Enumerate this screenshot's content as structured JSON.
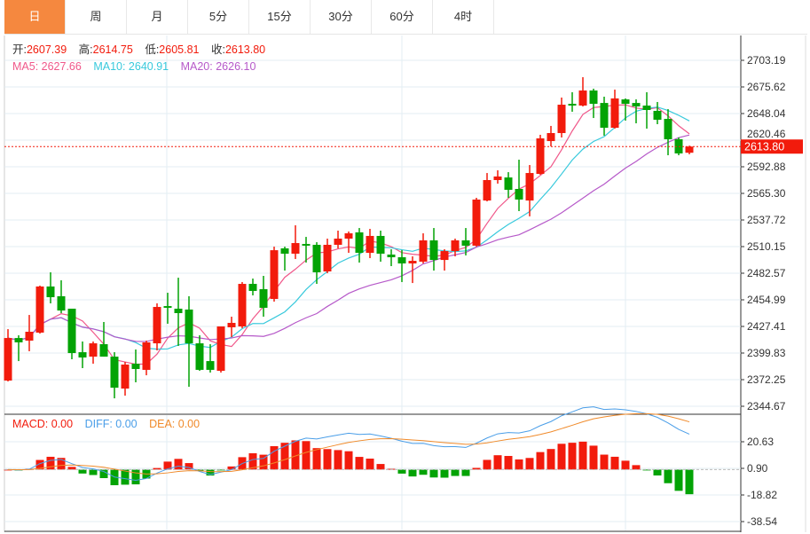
{
  "tabs": [
    "日",
    "周",
    "月",
    "5分",
    "15分",
    "30分",
    "60分",
    "4时"
  ],
  "active_tab": 0,
  "ohlc_labels": {
    "open": "开:",
    "high": "高:",
    "low": "低:",
    "close": "收:"
  },
  "ohlc_values": {
    "open": "2607.39",
    "high": "2614.75",
    "low": "2605.81",
    "close": "2613.80"
  },
  "ma": {
    "ma5": "MA5: 2627.66",
    "ma10": "MA10: 2640.91",
    "ma20": "MA20: 2626.10"
  },
  "macd": {
    "macd": "MACD: 0.00",
    "diff": "DIFF: 0.00",
    "dea": "DEA: 0.00"
  },
  "colors": {
    "up": "#f21b0c",
    "down": "#03a305",
    "ma5": "#f0588a",
    "ma10": "#38c9dc",
    "ma20": "#b659c9",
    "diff": "#4a9ee8",
    "dea": "#f08a2a",
    "accent": "#f5883f"
  },
  "current_price": "2613.80",
  "chart_data": {
    "type": "candlestick",
    "price_axis": {
      "ticks": [
        "2703.19",
        "2675.62",
        "2648.04",
        "2620.46",
        "2592.88",
        "2565.30",
        "2537.72",
        "2510.15",
        "2482.57",
        "2454.99",
        "2427.41",
        "2399.83",
        "2372.25",
        "2344.67"
      ],
      "range": [
        2344.67,
        2703.19
      ]
    },
    "macd_axis": {
      "ticks": [
        "20.63",
        "0.90",
        "-18.82",
        "-38.54"
      ],
      "range": [
        -38.54,
        20.63
      ]
    },
    "candles": [
      [
        2371.3,
        2415.4,
        2424.6,
        2370.4
      ],
      [
        2415.4,
        2410.9,
        2418.2,
        2391.5
      ],
      [
        2412.7,
        2421.9,
        2439.3,
        2401.7
      ],
      [
        2421.0,
        2468.8,
        2469.7,
        2420.0
      ],
      [
        2468.8,
        2457.7,
        2483.5,
        2451.3
      ],
      [
        2458.7,
        2443.9,
        2475.2,
        2441.2
      ],
      [
        2445.8,
        2399.8,
        2445.8,
        2393.4
      ],
      [
        2400.7,
        2395.2,
        2411.8,
        2384.2
      ],
      [
        2396.1,
        2409.9,
        2411.8,
        2388.8
      ],
      [
        2409.0,
        2396.1,
        2432.0,
        2396.1
      ],
      [
        2396.1,
        2363.9,
        2400.7,
        2352.9
      ],
      [
        2363.0,
        2387.9,
        2390.6,
        2355.7
      ],
      [
        2388.8,
        2383.3,
        2403.5,
        2369.5
      ],
      [
        2382.4,
        2410.9,
        2412.7,
        2376.8
      ],
      [
        2409.9,
        2447.6,
        2451.3,
        2402.6
      ],
      [
        2448.5,
        2446.7,
        2462.3,
        2430.2
      ],
      [
        2445.8,
        2441.2,
        2477.9,
        2407.2
      ],
      [
        2444.9,
        2409.9,
        2458.7,
        2364.9
      ],
      [
        2409.9,
        2382.4,
        2418.2,
        2381.4
      ],
      [
        2391.5,
        2382.4,
        2409.0,
        2379.6
      ],
      [
        2381.4,
        2427.4,
        2427.4,
        2379.6
      ],
      [
        2426.5,
        2431.1,
        2437.5,
        2416.4
      ],
      [
        2427.4,
        2471.5,
        2473.4,
        2425.6
      ],
      [
        2471.5,
        2464.2,
        2477.0,
        2459.6
      ],
      [
        2466.0,
        2446.7,
        2479.8,
        2437.5
      ],
      [
        2455.9,
        2506.4,
        2510.1,
        2453.1
      ],
      [
        2508.3,
        2502.8,
        2510.1,
        2485.3
      ],
      [
        2502.8,
        2513.8,
        2532.2,
        2497.3
      ],
      [
        2512.9,
        2511.1,
        2520.2,
        2493.6
      ],
      [
        2512.0,
        2483.5,
        2514.7,
        2471.5
      ],
      [
        2484.4,
        2512.0,
        2518.4,
        2482.6
      ],
      [
        2512.0,
        2518.4,
        2526.7,
        2508.3
      ],
      [
        2518.4,
        2523.9,
        2525.8,
        2503.7
      ],
      [
        2524.9,
        2503.7,
        2529.4,
        2493.6
      ],
      [
        2503.7,
        2521.2,
        2528.5,
        2498.2
      ],
      [
        2521.2,
        2502.8,
        2526.7,
        2494.5
      ],
      [
        2501.9,
        2499.1,
        2507.4,
        2489.9
      ],
      [
        2499.1,
        2492.7,
        2506.5,
        2473.4
      ],
      [
        2492.7,
        2495.4,
        2500.0,
        2472.4
      ],
      [
        2494.5,
        2516.6,
        2523.9,
        2492.7
      ],
      [
        2516.6,
        2496.3,
        2529.4,
        2485.3
      ],
      [
        2496.3,
        2505.5,
        2507.4,
        2485.3
      ],
      [
        2505.5,
        2516.6,
        2518.4,
        2500.0
      ],
      [
        2516.6,
        2511.1,
        2529.4,
        2501.0
      ],
      [
        2511.1,
        2558.9,
        2560.7,
        2510.1
      ],
      [
        2557.9,
        2579.1,
        2586.4,
        2557.0
      ],
      [
        2579.1,
        2582.8,
        2589.2,
        2575.4
      ],
      [
        2581.8,
        2569.0,
        2587.3,
        2560.7
      ],
      [
        2569.9,
        2558.9,
        2600.2,
        2546.9
      ],
      [
        2557.9,
        2586.4,
        2594.7,
        2541.5
      ],
      [
        2585.5,
        2622.3,
        2626.0,
        2584.6
      ],
      [
        2619.5,
        2627.8,
        2635.2,
        2614.0
      ],
      [
        2627.8,
        2657.2,
        2664.6,
        2623.2
      ],
      [
        2658.1,
        2656.3,
        2670.1,
        2649.9
      ],
      [
        2656.3,
        2671.9,
        2685.7,
        2655.4
      ],
      [
        2671.9,
        2658.1,
        2673.8,
        2643.4
      ],
      [
        2659.0,
        2633.3,
        2665.5,
        2625.1
      ],
      [
        2633.3,
        2663.7,
        2672.8,
        2632.4
      ],
      [
        2662.7,
        2658.1,
        2663.7,
        2640.7
      ],
      [
        2659.0,
        2655.4,
        2662.7,
        2637.9
      ],
      [
        2656.3,
        2651.7,
        2670.1,
        2632.4
      ],
      [
        2650.8,
        2641.6,
        2660.0,
        2637.0
      ],
      [
        2642.5,
        2621.4,
        2652.6,
        2604.8
      ],
      [
        2621.4,
        2606.7,
        2623.2,
        2604.8
      ],
      [
        2607.39,
        2613.8,
        2614.75,
        2605.81
      ]
    ]
  }
}
